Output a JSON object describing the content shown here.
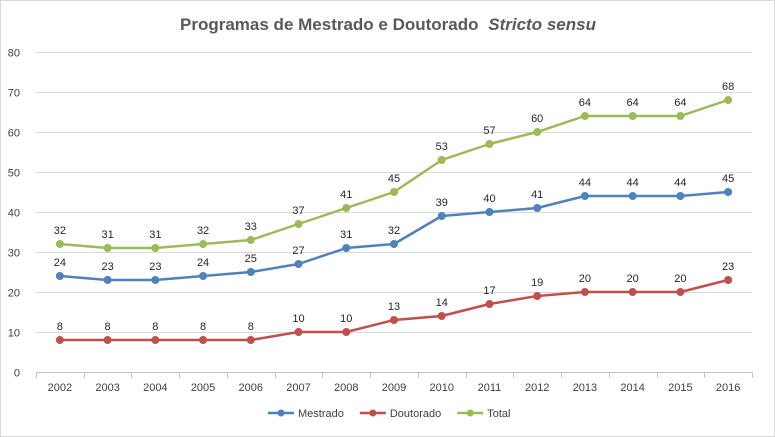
{
  "chart_data": {
    "type": "line",
    "title": "Programas de Mestrado e Doutorado",
    "title_italic": "Stricto sensu",
    "categories": [
      "2002",
      "2003",
      "2004",
      "2005",
      "2006",
      "2007",
      "2008",
      "2009",
      "2010",
      "2011",
      "2012",
      "2013",
      "2014",
      "2015",
      "2016"
    ],
    "series": [
      {
        "name": "Mestrado",
        "color": "#4f81bd",
        "values": [
          24,
          23,
          23,
          24,
          25,
          27,
          31,
          32,
          39,
          40,
          41,
          44,
          44,
          44,
          45
        ]
      },
      {
        "name": "Doutorado",
        "color": "#c0504d",
        "values": [
          8,
          8,
          8,
          8,
          8,
          10,
          10,
          13,
          14,
          17,
          19,
          20,
          20,
          20,
          23
        ]
      },
      {
        "name": "Total",
        "color": "#9bbb59",
        "values": [
          32,
          31,
          31,
          32,
          33,
          37,
          41,
          45,
          53,
          57,
          60,
          64,
          64,
          64,
          68
        ]
      }
    ],
    "ylim": [
      0,
      80
    ],
    "yticks": [
      0,
      10,
      20,
      30,
      40,
      50,
      60,
      70,
      80
    ],
    "grid": true,
    "legend_position": "bottom",
    "xlabel": "",
    "ylabel": ""
  }
}
